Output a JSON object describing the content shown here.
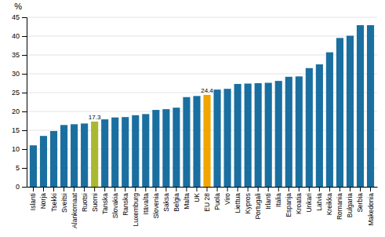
{
  "chart_data": {
    "type": "bar",
    "categories": [
      "Islanti",
      "Norja",
      "Tsekki",
      "Sveitsi",
      "Alankomaat",
      "Ruotsi",
      "Suomi",
      "Tanska",
      "Slovakia",
      "Ranska",
      "Luxemburg",
      "Itävalta",
      "Slovenia",
      "Saksa",
      "Belgia",
      "Malta",
      "UK",
      "EU 28",
      "Puola",
      "Viro",
      "Liettua",
      "Kypros",
      "Portugali",
      "Irlanti",
      "Italia",
      "Espanja",
      "Kroatia",
      "Unkari",
      "Latvia",
      "Kreikka",
      "Romania",
      "Bulgaria",
      "Serbia",
      "Makedonia"
    ],
    "values": [
      11.0,
      13.5,
      14.8,
      16.4,
      16.6,
      16.8,
      17.3,
      17.9,
      18.4,
      18.5,
      19.0,
      19.3,
      20.4,
      20.6,
      21.0,
      23.8,
      24.1,
      24.4,
      25.8,
      26.0,
      27.3,
      27.4,
      27.5,
      27.6,
      28.1,
      29.2,
      29.3,
      31.5,
      32.5,
      35.7,
      39.5,
      40.1,
      42.9,
      42.9
    ],
    "colors": [
      "#1a6fa0",
      "#1a6fa0",
      "#1a6fa0",
      "#1a6fa0",
      "#1a6fa0",
      "#1a6fa0",
      "#a8b832",
      "#1a6fa0",
      "#1a6fa0",
      "#1a6fa0",
      "#1a6fa0",
      "#1a6fa0",
      "#1a6fa0",
      "#1a6fa0",
      "#1a6fa0",
      "#1a6fa0",
      "#1a6fa0",
      "#f0a500",
      "#1a6fa0",
      "#1a6fa0",
      "#1a6fa0",
      "#1a6fa0",
      "#1a6fa0",
      "#1a6fa0",
      "#1a6fa0",
      "#1a6fa0",
      "#1a6fa0",
      "#1a6fa0",
      "#1a6fa0",
      "#1a6fa0",
      "#1a6fa0",
      "#1a6fa0",
      "#1a6fa0",
      "#1a6fa0"
    ],
    "ylabel": "%",
    "ylim": [
      0,
      45
    ],
    "yticks": [
      0,
      5,
      10,
      15,
      20,
      25,
      30,
      35,
      40,
      45
    ],
    "grid": true,
    "annotations": [
      {
        "text": "17.3",
        "x": "Suomi",
        "y": 17.3
      },
      {
        "text": "24.4",
        "x": "EU 28",
        "y": 24.4
      }
    ]
  }
}
